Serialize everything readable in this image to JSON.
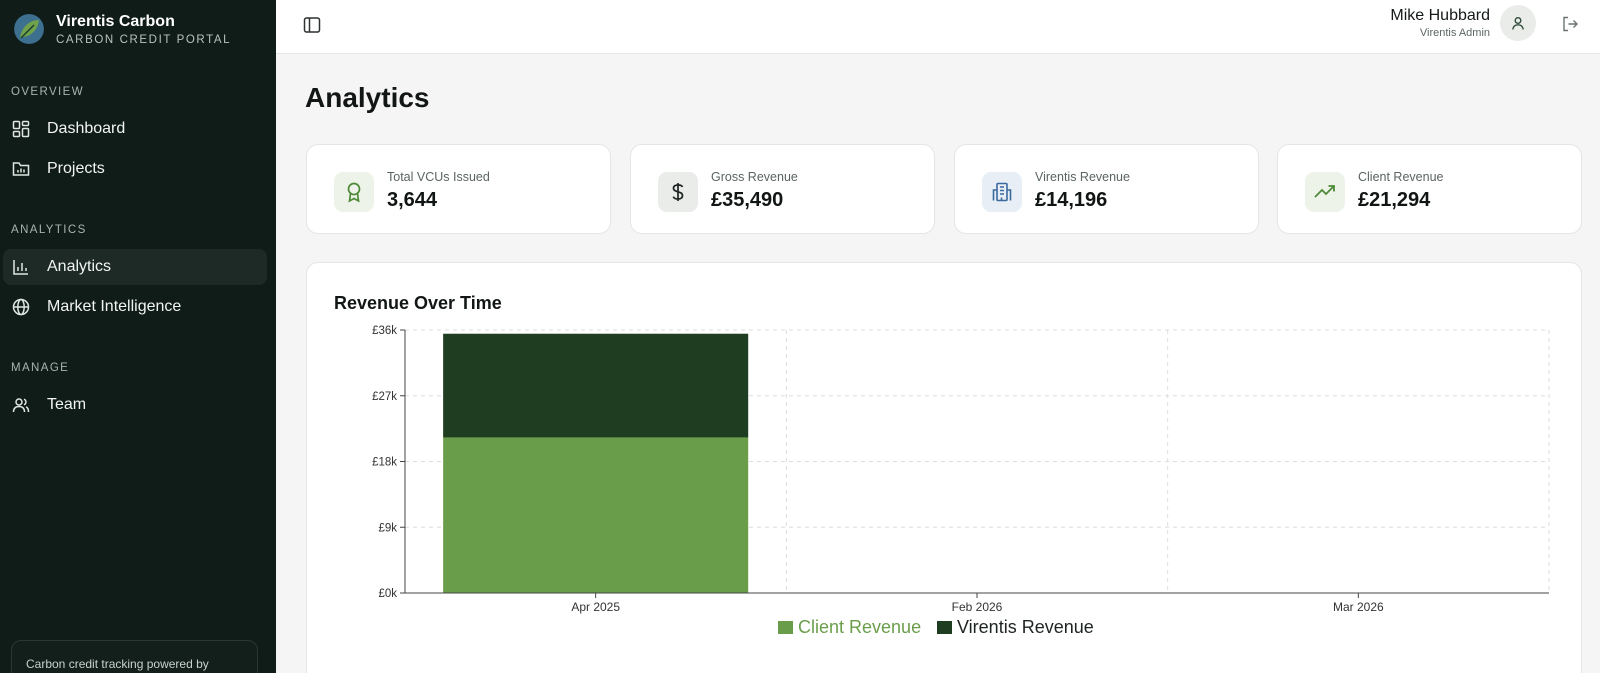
{
  "brand": {
    "name": "Virentis Carbon",
    "subtitle": "CARBON CREDIT PORTAL"
  },
  "sidebar": {
    "sections": [
      {
        "title": "OVERVIEW",
        "items": [
          {
            "label": "Dashboard",
            "icon": "dashboard-icon"
          },
          {
            "label": "Projects",
            "icon": "folder-chart-icon"
          }
        ]
      },
      {
        "title": "ANALYTICS",
        "items": [
          {
            "label": "Analytics",
            "icon": "bar-chart-icon",
            "active": true
          },
          {
            "label": "Market Intelligence",
            "icon": "globe-icon"
          }
        ]
      },
      {
        "title": "MANAGE",
        "items": [
          {
            "label": "Team",
            "icon": "users-icon"
          }
        ]
      }
    ],
    "footer_text": "Carbon credit tracking powered by"
  },
  "header": {
    "user_name": "Mike Hubbard",
    "user_role": "Virentis Admin"
  },
  "page": {
    "title": "Analytics"
  },
  "stats": [
    {
      "label": "Total VCUs Issued",
      "value": "3,644",
      "icon": "award-icon",
      "icon_bg": "#eef3ea",
      "icon_color": "#4d8a35"
    },
    {
      "label": "Gross Revenue",
      "value": "£35,490",
      "icon": "dollar-icon",
      "icon_bg": "#eaecea",
      "icon_color": "#1e2522"
    },
    {
      "label": "Virentis Revenue",
      "value": "£14,196",
      "icon": "building-icon",
      "icon_bg": "#e7eef6",
      "icon_color": "#3b6a9e"
    },
    {
      "label": "Client Revenue",
      "value": "£21,294",
      "icon": "trending-up-icon",
      "icon_bg": "#eef3ea",
      "icon_color": "#4d8a35"
    }
  ],
  "chart": {
    "title": "Revenue Over Time"
  },
  "chart_data": {
    "type": "bar",
    "stacked": true,
    "categories": [
      "Apr 2025",
      "Feb 2026",
      "Mar 2026"
    ],
    "series": [
      {
        "name": "Client Revenue",
        "values": [
          21294,
          0,
          0
        ],
        "color": "#6a9d4a"
      },
      {
        "name": "Virentis Revenue",
        "values": [
          14196,
          0,
          0
        ],
        "color": "#1f3d21"
      }
    ],
    "y_ticks": [
      "£0k",
      "£9k",
      "£18k",
      "£27k",
      "£36k"
    ],
    "ylim": [
      0,
      36000
    ],
    "grid": true,
    "legend_position": "bottom"
  }
}
